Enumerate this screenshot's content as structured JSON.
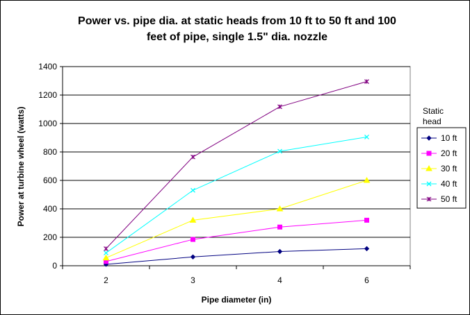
{
  "chart_data": {
    "type": "line",
    "title_line1": "Power vs. pipe dia. at static heads from 10 ft to 50 ft and 100",
    "title_line2": "feet of pipe, single 1.5\" dia. nozzle",
    "xlabel": "Pipe diameter (in)",
    "ylabel": "Power at turbine wheel (watts)",
    "categories": [
      "2",
      "3",
      "4",
      "6"
    ],
    "ylim": [
      0,
      1400
    ],
    "yticks": [
      "0",
      "200",
      "400",
      "600",
      "800",
      "1000",
      "1200",
      "1400"
    ],
    "grid": "horizontal major",
    "legend_title_line1": "Static",
    "legend_title_line2": "head",
    "legend_position": "right",
    "series": [
      {
        "name": "10 ft",
        "color": "#000080",
        "marker": "diamond",
        "values": [
          10,
          62,
          100,
          120
        ]
      },
      {
        "name": "20 ft",
        "color": "#ff00ff",
        "marker": "square",
        "values": [
          30,
          185,
          272,
          320
        ]
      },
      {
        "name": "30 ft",
        "color": "#ffff00",
        "marker": "triangle",
        "values": [
          55,
          320,
          400,
          600
        ]
      },
      {
        "name": "40 ft",
        "color": "#00ffff",
        "marker": "x",
        "values": [
          90,
          530,
          805,
          905
        ]
      },
      {
        "name": "50 ft",
        "color": "#800080",
        "marker": "star",
        "values": [
          120,
          765,
          1118,
          1295
        ]
      }
    ]
  }
}
